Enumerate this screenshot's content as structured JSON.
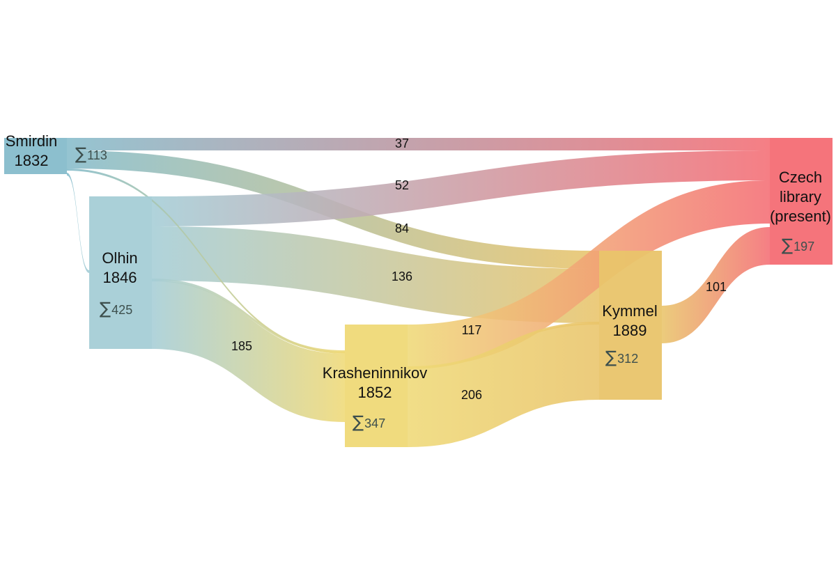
{
  "chart_data": {
    "type": "sankey",
    "nodes": [
      {
        "id": "smirdin",
        "lines": [
          "Smirdin",
          "1832"
        ],
        "total": "113",
        "color": "#86bccb"
      },
      {
        "id": "olhin",
        "lines": [
          "Olhin",
          "1846"
        ],
        "total": "425",
        "color": "#a5cdd6"
      },
      {
        "id": "krash",
        "lines": [
          "Krasheninnikov",
          "1852"
        ],
        "total": "347",
        "color": "#efd977"
      },
      {
        "id": "kymmel",
        "lines": [
          "Kymmel",
          "1889"
        ],
        "total": "312",
        "color": "#e9c46a"
      },
      {
        "id": "czech",
        "lines": [
          "Czech",
          "library",
          "(present)"
        ],
        "total": "197",
        "color": "#f46d74"
      }
    ],
    "links": [
      {
        "source": "smirdin",
        "target": "czech",
        "value": 37,
        "label": "37"
      },
      {
        "source": "smirdin",
        "target": "kymmel",
        "value": 52,
        "label": "52"
      },
      {
        "source": "olhin",
        "target": "czech",
        "value": 84,
        "label": "84"
      },
      {
        "source": "olhin",
        "target": "kymmel",
        "value": 136,
        "label": "136"
      },
      {
        "source": "olhin",
        "target": "krash",
        "value": 185,
        "label": "185"
      },
      {
        "source": "krash",
        "target": "czech",
        "value": 117,
        "label": "117"
      },
      {
        "source": "krash",
        "target": "kymmel",
        "value": 206,
        "label": "206"
      },
      {
        "source": "kymmel",
        "target": "czech",
        "value": 101,
        "label": "101"
      },
      {
        "source": "smirdin",
        "target": "olhin",
        "value": 0,
        "label": ""
      },
      {
        "source": "smirdin",
        "target": "krash",
        "value": 0,
        "label": ""
      },
      {
        "source": "olhin",
        "target": "krash",
        "value": 0,
        "label": ""
      },
      {
        "source": "krash",
        "target": "kymmel",
        "value": 0,
        "label": ""
      }
    ]
  }
}
